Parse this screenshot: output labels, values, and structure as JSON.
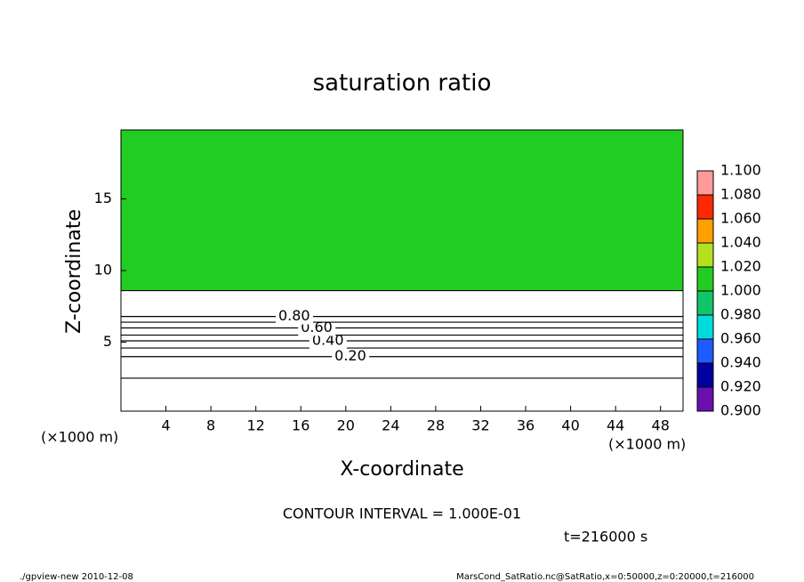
{
  "chart_data": {
    "type": "contour",
    "title": "saturation ratio",
    "xlabel": "X-coordinate",
    "ylabel": "Z-coordinate",
    "x_unit": "(×1000 m)",
    "y_unit": "(×1000 m)",
    "xlim": [
      0,
      50
    ],
    "ylim": [
      0.2,
      19.8
    ],
    "xticks": [
      4,
      8,
      12,
      16,
      20,
      24,
      28,
      32,
      36,
      40,
      44,
      48
    ],
    "yticks": [
      5,
      10,
      15
    ],
    "note": "CONTOUR INTERVAL = 1.000E-01",
    "time": "t=216000 s",
    "footer_left": "./gpview-new  2010-12-08",
    "footer_right": "MarsCond_SatRatio.nc@SatRatio,x=0:50000,z=0:20000,t=216000",
    "saturated_top": 8.6,
    "contours": [
      {
        "value": 0.1,
        "z": 2.5
      },
      {
        "value": {
          "value": 0.2,
          "label": "0.20"
        },
        "z": 4.0,
        "label_x": 19
      },
      {
        "value": 0.3,
        "z": 4.6
      },
      {
        "value": {
          "value": 0.4,
          "label": "0.40"
        },
        "z": 5.1,
        "label_x": 17
      },
      {
        "value": 0.5,
        "z": 5.5
      },
      {
        "value": {
          "value": 0.6,
          "label": "0.60"
        },
        "z": 6.0,
        "label_x": 16
      },
      {
        "value": 0.7,
        "z": 6.4
      },
      {
        "value": {
          "value": 0.8,
          "label": "0.80"
        },
        "z": 6.8,
        "label_x": 14
      }
    ],
    "colorbar": {
      "ticks": [
        {
          "value": 0.9,
          "label": "0.900"
        },
        {
          "value": 0.92,
          "label": "0.920"
        },
        {
          "value": 0.94,
          "label": "0.940"
        },
        {
          "value": 0.96,
          "label": "0.960"
        },
        {
          "value": 0.98,
          "label": "0.980"
        },
        {
          "value": 1.0,
          "label": "1.000"
        },
        {
          "value": 1.02,
          "label": "1.020"
        },
        {
          "value": 1.04,
          "label": "1.040"
        },
        {
          "value": 1.06,
          "label": "1.060"
        },
        {
          "value": 1.08,
          "label": "1.080"
        },
        {
          "value": 1.1,
          "label": "1.100"
        }
      ],
      "colors": [
        "#6a10b0",
        "#0000a0",
        "#1e5cff",
        "#00dcdc",
        "#12c46a",
        "#22cc22",
        "#b4e020",
        "#ffa000",
        "#ff2800",
        "#ff9a9a"
      ]
    }
  }
}
